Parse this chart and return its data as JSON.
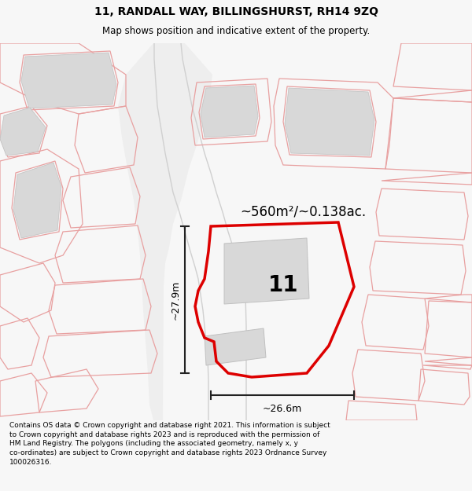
{
  "title": "11, RANDALL WAY, BILLINGSHURST, RH14 9ZQ",
  "subtitle": "Map shows position and indicative extent of the property.",
  "footer": "Contains OS data © Crown copyright and database right 2021. This information is subject\nto Crown copyright and database rights 2023 and is reproduced with the permission of\nHM Land Registry. The polygons (including the associated geometry, namely x, y\nco-ordinates) are subject to Crown copyright and database rights 2023 Ordnance Survey\n100026316.",
  "area_label": "~560m²/~0.138ac.",
  "number_label": "11",
  "width_label": "~26.6m",
  "height_label": "~27.9m",
  "bg_color": "#f7f7f7",
  "map_bg": "#ffffff",
  "plot_color": "#dd0000",
  "building_fill": "#d8d8d8",
  "building_edge": "#c0c0c0",
  "other_plot_color": "#e8a0a0",
  "dim_line_color": "#222222",
  "road_fill": "#e8e8e8",
  "title_fontsize": 10,
  "subtitle_fontsize": 8.5,
  "footer_fontsize": 6.5
}
